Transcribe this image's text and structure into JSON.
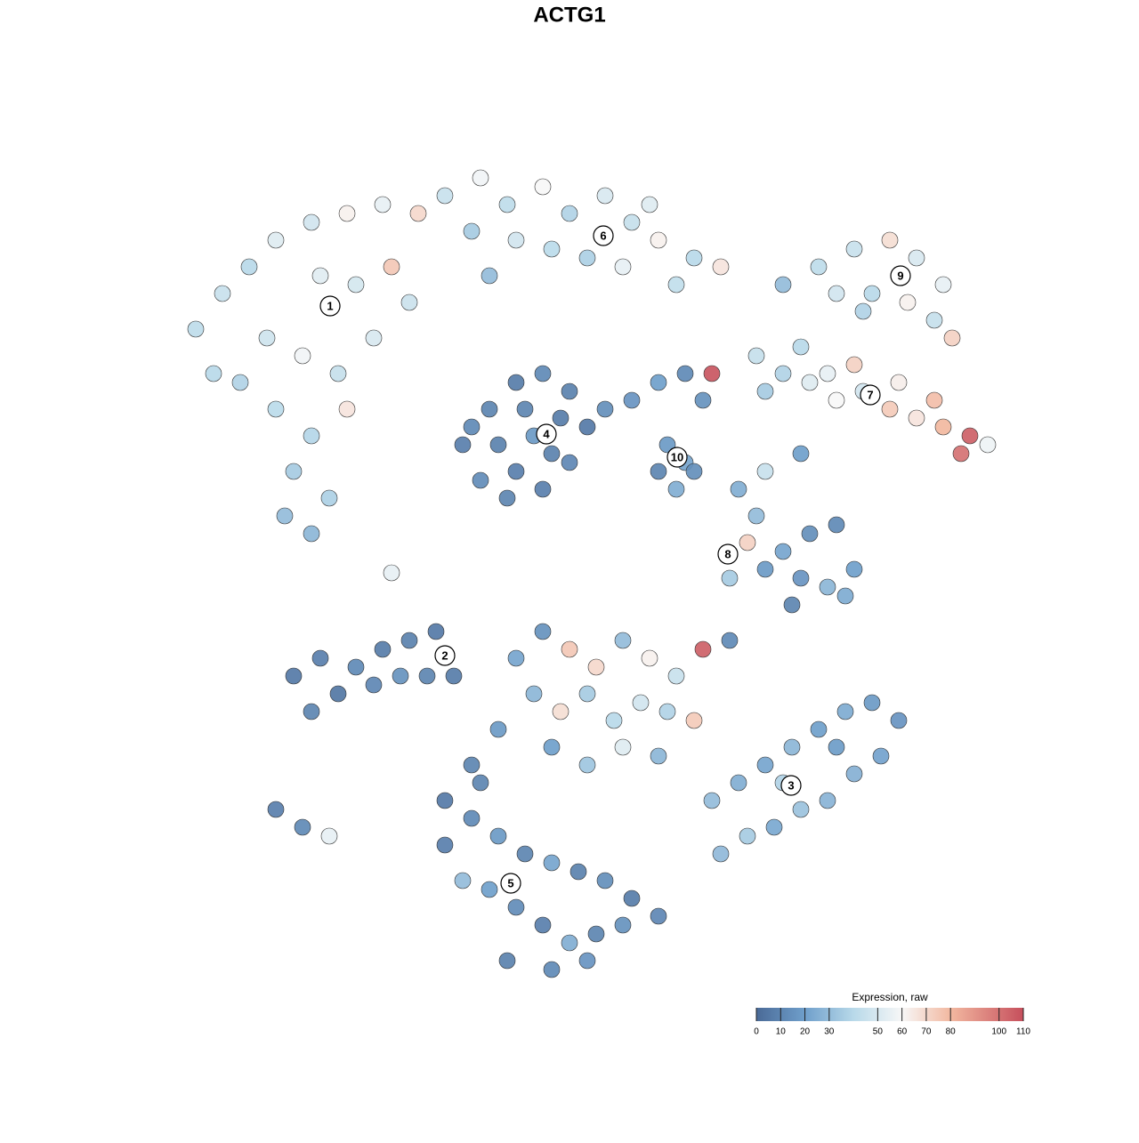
{
  "chart_data": {
    "type": "scatter",
    "title": "ACTG1",
    "xlim": [
      0,
      128
    ],
    "ylim": [
      0,
      128
    ],
    "x": [
      22,
      25,
      28,
      31,
      35,
      39,
      43,
      47,
      30,
      34,
      38,
      42,
      46,
      27,
      31,
      35,
      39,
      33,
      37,
      32,
      35,
      24,
      44,
      40,
      36,
      50,
      54,
      57,
      61,
      64,
      68,
      71,
      74,
      78,
      81,
      53,
      58,
      62,
      66,
      70,
      55,
      73,
      76,
      88,
      92,
      96,
      100,
      103,
      106,
      94,
      98,
      102,
      105,
      107,
      97,
      85,
      88,
      91,
      94,
      97,
      100,
      103,
      106,
      109,
      111,
      90,
      96,
      101,
      105,
      108,
      86,
      93,
      52,
      55,
      58,
      61,
      64,
      66,
      64,
      61,
      57,
      54,
      56,
      60,
      63,
      59,
      53,
      58,
      62,
      68,
      71,
      74,
      77,
      80,
      79,
      75,
      77,
      76,
      78,
      74,
      83,
      85,
      84,
      86,
      88,
      91,
      94,
      96,
      93,
      90,
      89,
      95,
      82,
      86,
      90,
      33,
      36,
      38,
      35,
      40,
      43,
      46,
      49,
      42,
      45,
      31,
      34,
      37,
      48,
      51,
      58,
      61,
      64,
      67,
      70,
      73,
      76,
      79,
      82,
      60,
      63,
      66,
      69,
      72,
      75,
      78,
      62,
      66,
      70,
      74,
      56,
      53,
      80,
      83,
      86,
      89,
      92,
      95,
      98,
      101,
      99,
      96,
      93,
      90,
      87,
      84,
      81,
      94,
      88,
      50,
      53,
      56,
      59,
      62,
      65,
      68,
      71,
      74,
      55,
      58,
      61,
      64,
      67,
      70,
      52,
      57,
      62,
      66,
      50,
      54,
      44
    ],
    "y": [
      91,
      95,
      98,
      101,
      103,
      104,
      105,
      104,
      90,
      88,
      86,
      90,
      94,
      85,
      82,
      79,
      82,
      75,
      72,
      70,
      68,
      86,
      98,
      96,
      97,
      106,
      108,
      105,
      107,
      104,
      106,
      103,
      101,
      99,
      98,
      102,
      101,
      100,
      99,
      98,
      97,
      105,
      96,
      96,
      98,
      100,
      101,
      99,
      96,
      95,
      95,
      94,
      92,
      90,
      93,
      88,
      86,
      85,
      83,
      84,
      82,
      81,
      80,
      79,
      78,
      89,
      87,
      85,
      83,
      77,
      84,
      86,
      78,
      82,
      85,
      86,
      84,
      80,
      76,
      73,
      72,
      74,
      78,
      79,
      81,
      82,
      80,
      75,
      77,
      82,
      83,
      85,
      86,
      86,
      83,
      78,
      76,
      73,
      75,
      75,
      73,
      70,
      67,
      64,
      66,
      68,
      69,
      64,
      62,
      63,
      60,
      61,
      63,
      75,
      77,
      52,
      54,
      50,
      48,
      53,
      55,
      56,
      57,
      51,
      52,
      37,
      35,
      34,
      52,
      52,
      54,
      57,
      55,
      53,
      56,
      54,
      52,
      55,
      56,
      50,
      48,
      50,
      47,
      49,
      48,
      47,
      44,
      42,
      44,
      43,
      46,
      42,
      38,
      40,
      42,
      44,
      46,
      48,
      49,
      47,
      43,
      41,
      38,
      37,
      35,
      34,
      32,
      44,
      40,
      33,
      36,
      34,
      32,
      31,
      30,
      29,
      27,
      25,
      28,
      26,
      24,
      22,
      23,
      24,
      29,
      20,
      19,
      20,
      38,
      40,
      63.6
    ],
    "values": [
      42,
      45,
      40,
      52,
      48,
      62,
      55,
      70,
      47,
      58,
      44,
      50,
      46,
      38,
      41,
      39,
      66,
      35,
      37,
      30,
      28,
      40,
      75,
      49,
      53,
      45,
      58,
      42,
      60,
      38,
      50,
      44,
      62,
      40,
      66,
      35,
      48,
      41,
      37,
      55,
      30,
      52,
      43,
      30,
      42,
      45,
      68,
      50,
      55,
      48,
      40,
      62,
      44,
      72,
      38,
      44,
      38,
      52,
      60,
      48,
      74,
      66,
      80,
      105,
      57,
      40,
      72,
      63,
      78,
      100,
      35,
      55,
      8,
      10,
      7,
      12,
      9,
      6,
      11,
      8,
      10,
      13,
      9,
      18,
      7,
      10,
      12,
      8,
      9,
      14,
      16,
      20,
      12,
      108,
      15,
      18,
      22,
      25,
      14,
      10,
      25,
      30,
      72,
      18,
      22,
      14,
      12,
      20,
      28,
      16,
      10,
      24,
      35,
      45,
      20,
      6,
      8,
      5,
      10,
      12,
      7,
      9,
      6,
      11,
      15,
      8,
      12,
      55,
      10,
      7,
      22,
      15,
      75,
      70,
      30,
      62,
      45,
      105,
      12,
      28,
      68,
      35,
      40,
      48,
      38,
      74,
      20,
      33,
      52,
      28,
      18,
      10,
      30,
      25,
      22,
      28,
      20,
      24,
      18,
      16,
      21,
      26,
      27,
      32,
      23,
      35,
      29,
      19,
      38,
      8,
      12,
      18,
      10,
      22,
      9,
      14,
      7,
      11,
      20,
      13,
      8,
      25,
      10,
      15,
      30,
      9,
      12,
      16,
      6,
      10,
      55
    ],
    "clusters": {
      "labels": [
        "1",
        "2",
        "3",
        "4",
        "5",
        "6",
        "7",
        "8",
        "9",
        "10"
      ],
      "x": [
        37.1,
        50,
        88.9,
        61.4,
        57.4,
        67.8,
        97.8,
        81.8,
        101.2,
        76.1
      ],
      "y": [
        93.6,
        54.3,
        39.7,
        79.2,
        28.7,
        101.5,
        83.6,
        65.7,
        97,
        76.6
      ]
    },
    "colorbar": {
      "title": "Expression, raw",
      "clim": [
        0,
        110
      ],
      "ticks": [
        0,
        10,
        20,
        30,
        50,
        60,
        70,
        80,
        100,
        110
      ],
      "color_stops": [
        {
          "value": 0,
          "color": "#4a6a97"
        },
        {
          "value": 20,
          "color": "#6f9fcb"
        },
        {
          "value": 40,
          "color": "#b8d9e9"
        },
        {
          "value": 60,
          "color": "#f7f7f7"
        },
        {
          "value": 80,
          "color": "#f2b8a0"
        },
        {
          "value": 110,
          "color": "#c64f5c"
        }
      ]
    }
  }
}
